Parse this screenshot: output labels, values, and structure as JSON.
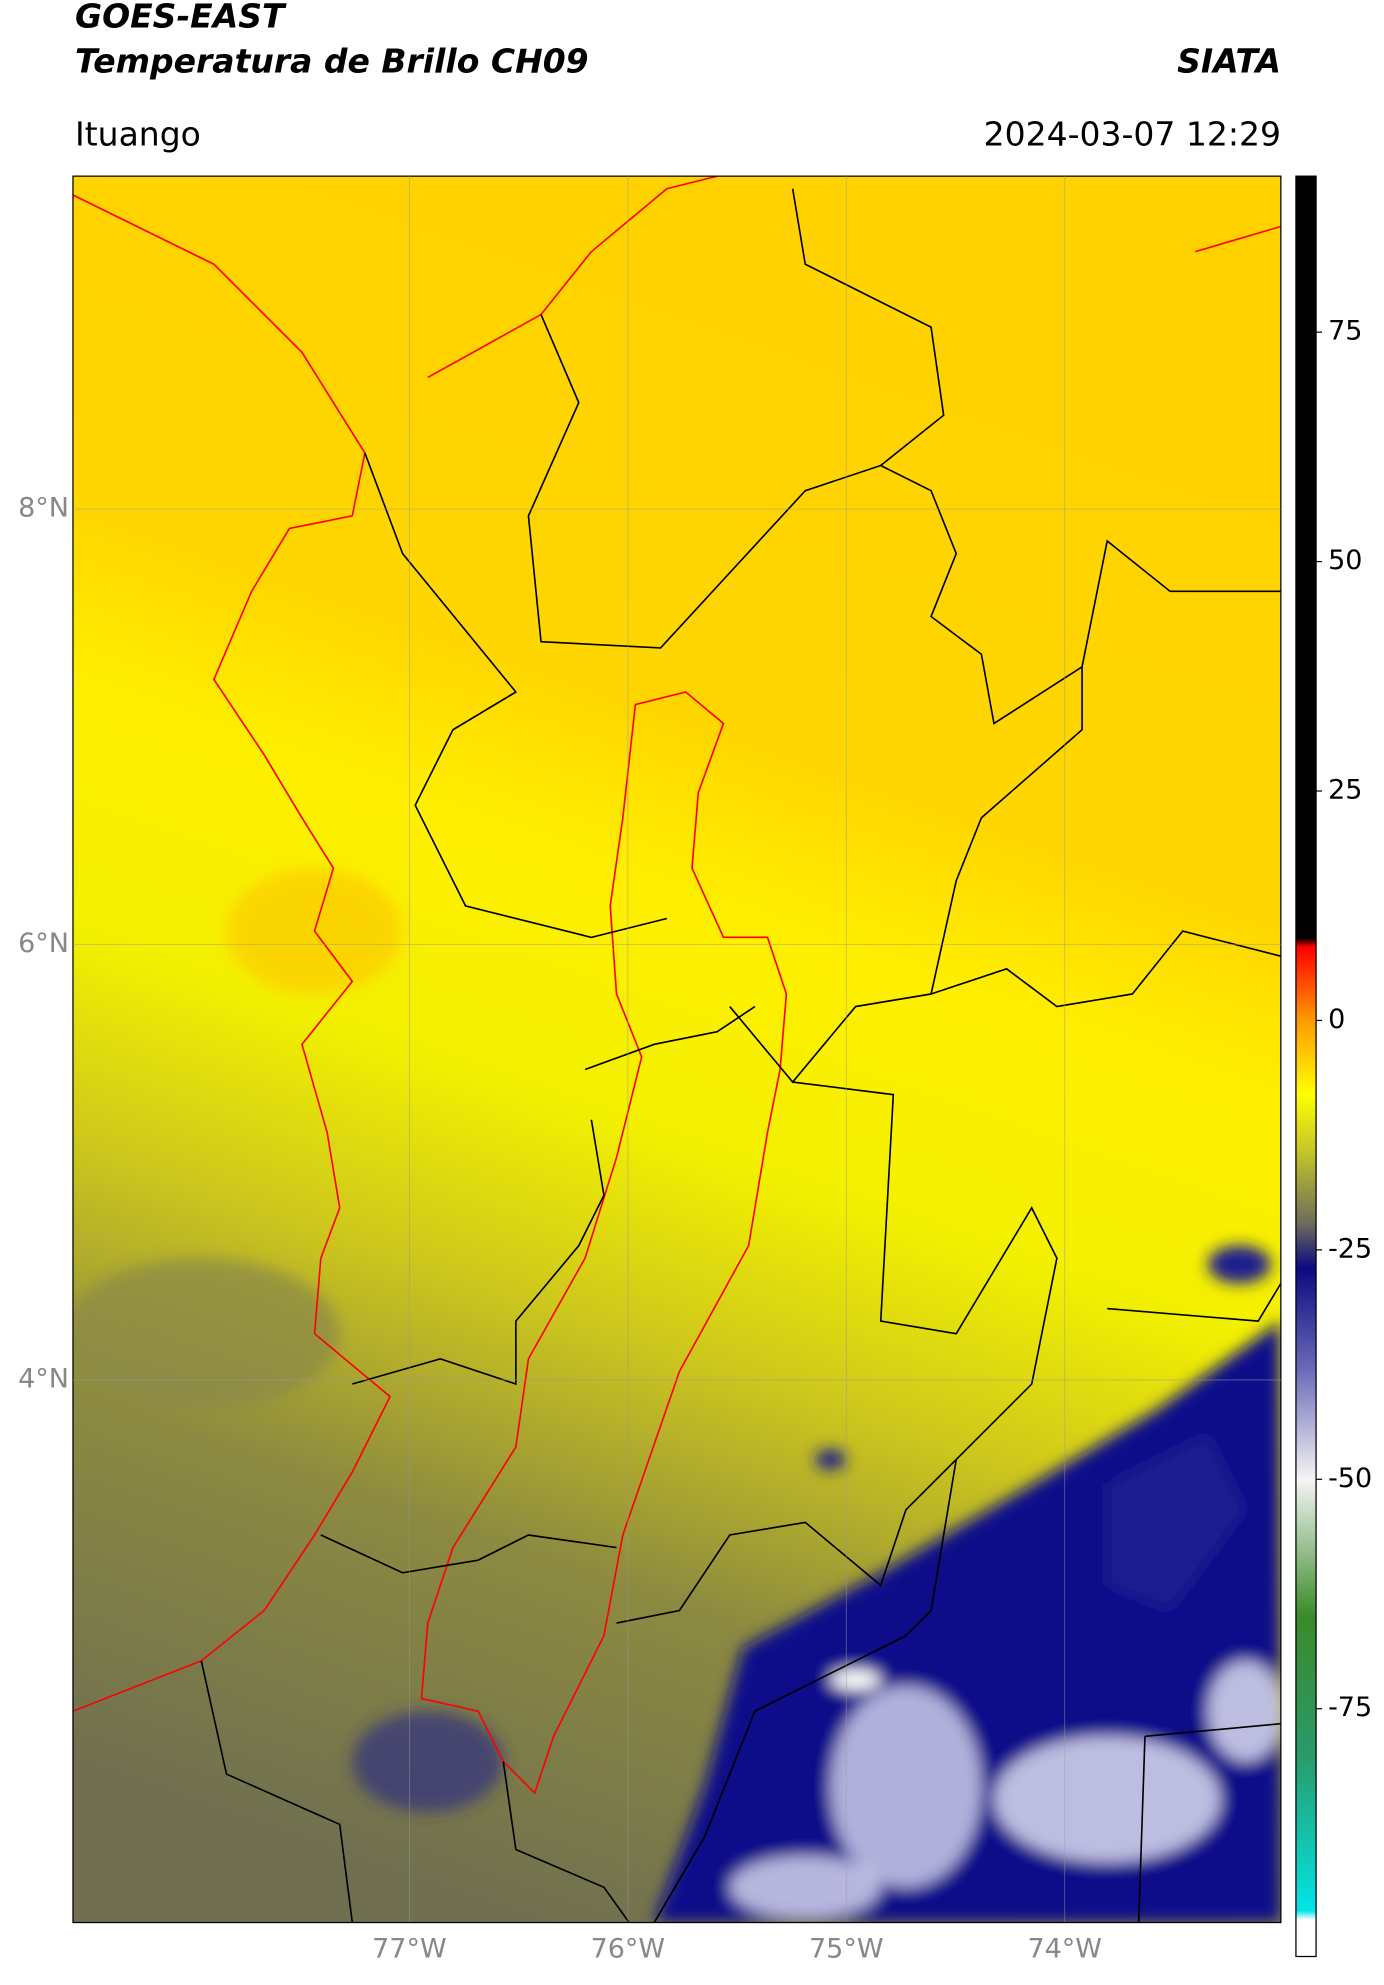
{
  "chart_data": {
    "type": "map",
    "title": "GOES-EAST",
    "subtitle": "Temperatura de Brillo CH09",
    "source": "SIATA",
    "location": "Ituango",
    "datetime": "2024-03-07 12:29",
    "xlim": [
      -78.54,
      -73.01
    ],
    "ylim": [
      1.51,
      9.53
    ],
    "xticks": [
      {
        "value": -77,
        "label": "77°W"
      },
      {
        "value": -76,
        "label": "76°W"
      },
      {
        "value": -75,
        "label": "75°W"
      },
      {
        "value": -74,
        "label": "74°W"
      }
    ],
    "yticks": [
      {
        "value": 8,
        "label": "8°N"
      },
      {
        "value": 6,
        "label": "6°N"
      },
      {
        "value": 4,
        "label": "4°N"
      }
    ],
    "grid": true,
    "colorbar": {
      "lim": [
        -102,
        92
      ],
      "ticks": [
        75,
        50,
        25,
        0,
        -25,
        -50,
        -75
      ],
      "stops": [
        {
          "value": -102,
          "color": "#ffffff"
        },
        {
          "value": -98,
          "color": "#ffffff"
        },
        {
          "value": -97,
          "color": "#00e5e5"
        },
        {
          "value": -80,
          "color": "#2a9a6a"
        },
        {
          "value": -65,
          "color": "#3a8a2a"
        },
        {
          "value": -50,
          "color": "#f5f5f5"
        },
        {
          "value": -38,
          "color": "#6a6ab8"
        },
        {
          "value": -27,
          "color": "#0a0a80"
        },
        {
          "value": -22,
          "color": "#6e6e5a"
        },
        {
          "value": -14,
          "color": "#c8c828"
        },
        {
          "value": -8,
          "color": "#ffff00"
        },
        {
          "value": 0,
          "color": "#ff9a00"
        },
        {
          "value": 8,
          "color": "#ff0000"
        },
        {
          "value": 9,
          "color": "#000000"
        },
        {
          "value": 92,
          "color": "#000000"
        }
      ]
    }
  }
}
